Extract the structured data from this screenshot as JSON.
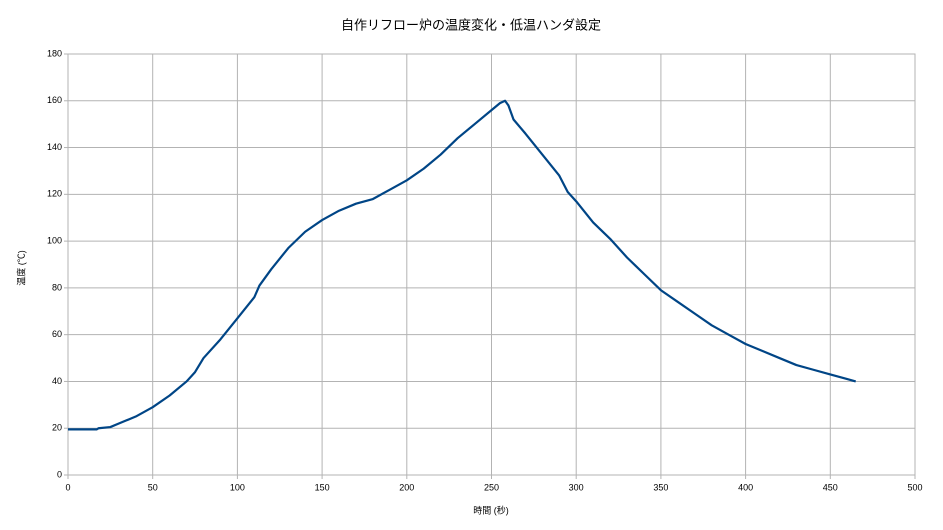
{
  "chart_data": {
    "type": "line",
    "title": "自作リフロー炉の温度変化・低温ハンダ設定",
    "x_label": "時間 (秒)",
    "y_label": "温度 (℃)",
    "x": [
      0,
      17,
      18,
      25,
      30,
      40,
      50,
      60,
      70,
      75,
      80,
      90,
      100,
      110,
      113,
      120,
      130,
      140,
      150,
      160,
      170,
      180,
      190,
      200,
      210,
      220,
      230,
      240,
      250,
      255,
      258,
      260,
      263,
      270,
      280,
      290,
      295,
      300,
      310,
      320,
      330,
      340,
      350,
      360,
      370,
      380,
      390,
      400,
      410,
      420,
      430,
      440,
      450,
      460,
      465
    ],
    "series": [
      {
        "color": "#004586",
        "values": [
          19.5,
          19.5,
          20,
          20.5,
          22,
          25,
          29,
          34,
          40,
          44,
          50,
          58,
          67,
          76,
          81,
          88,
          97,
          104,
          109,
          113,
          116,
          118,
          122,
          126,
          131,
          137,
          144,
          150,
          156,
          159,
          160,
          158,
          152,
          146,
          137,
          128,
          121,
          117,
          108,
          101,
          93,
          86,
          79,
          74,
          69,
          64,
          60,
          56,
          53,
          50,
          47,
          45,
          43,
          41,
          40
        ]
      }
    ],
    "xlim": [
      0,
      500
    ],
    "xticks": [
      0,
      50,
      100,
      150,
      200,
      250,
      300,
      350,
      400,
      450,
      500
    ],
    "ylim": [
      0,
      180
    ],
    "yticks": [
      0,
      20,
      40,
      60,
      80,
      100,
      120,
      140,
      160,
      180
    ],
    "grid": true
  }
}
